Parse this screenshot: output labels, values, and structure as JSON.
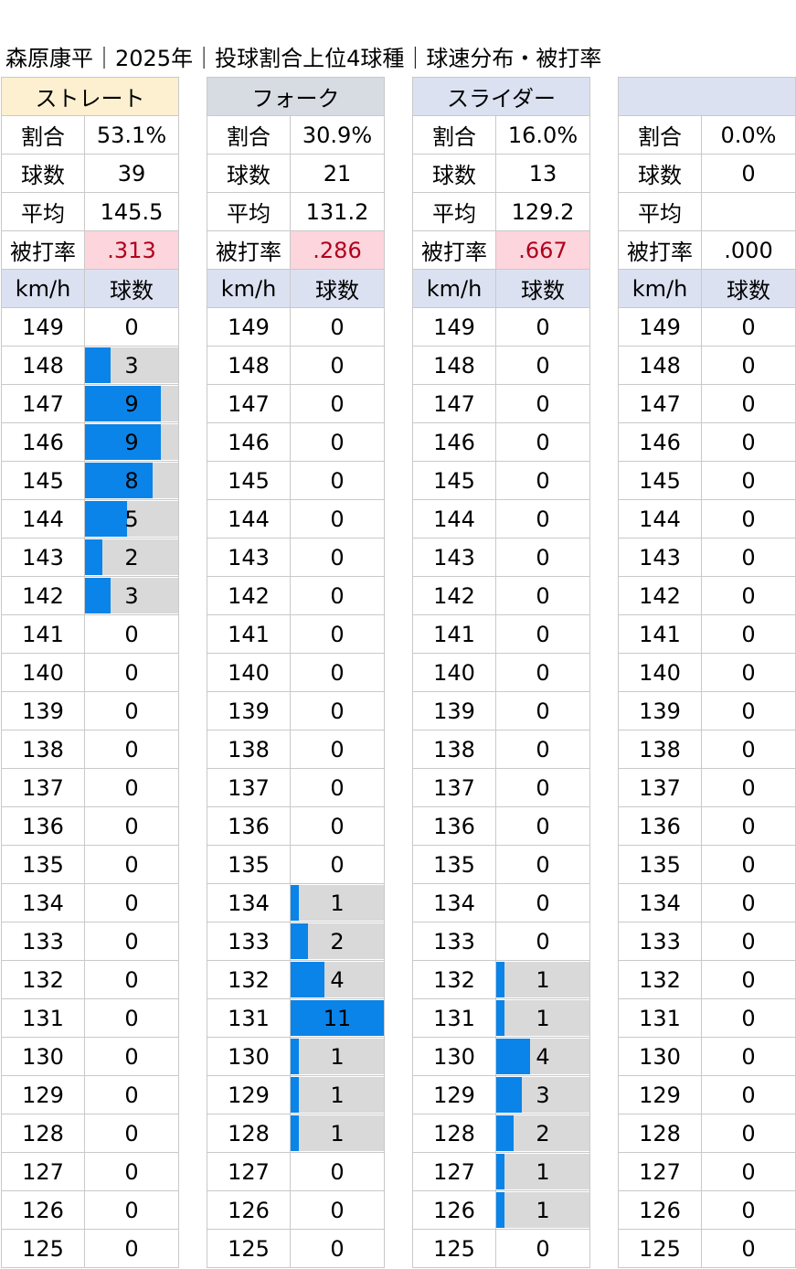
{
  "title": "森原康平｜2025年｜投球割合上位4球種｜球速分布・被打率",
  "labels": {
    "ratio": "割合",
    "count": "球数",
    "avg": "平均",
    "hit": "被打率",
    "speed": "km/h",
    "pitches": "球数"
  },
  "colors": {
    "bar": "#0a84e8",
    "track": "#d9d9d9",
    "hit_bg": "#fdd5dc",
    "hit_text": "#b0001e",
    "header_bg": "#dbe1f1"
  },
  "chart_data": {
    "type": "bar",
    "categories": [
      149,
      148,
      147,
      146,
      145,
      144,
      143,
      142,
      141,
      140,
      139,
      138,
      137,
      136,
      135,
      134,
      133,
      132,
      131,
      130,
      129,
      128,
      127,
      126,
      125
    ],
    "max_count": 11,
    "series": [
      {
        "name": "ストレート",
        "name_bg": "#fdf0d0",
        "ratio": "53.1%",
        "count": "39",
        "avg": "145.5",
        "hit": ".313",
        "hit_highlight": true,
        "values": [
          0,
          3,
          9,
          9,
          8,
          5,
          2,
          3,
          0,
          0,
          0,
          0,
          0,
          0,
          0,
          0,
          0,
          0,
          0,
          0,
          0,
          0,
          0,
          0,
          0
        ]
      },
      {
        "name": "フォーク",
        "name_bg": "#d7dce3",
        "ratio": "30.9%",
        "count": "21",
        "avg": "131.2",
        "hit": ".286",
        "hit_highlight": true,
        "values": [
          0,
          0,
          0,
          0,
          0,
          0,
          0,
          0,
          0,
          0,
          0,
          0,
          0,
          0,
          0,
          1,
          2,
          4,
          11,
          1,
          1,
          1,
          0,
          0,
          0
        ]
      },
      {
        "name": "スライダー",
        "name_bg": "#dbe1f1",
        "ratio": "16.0%",
        "count": "13",
        "avg": "129.2",
        "hit": ".667",
        "hit_highlight": true,
        "values": [
          0,
          0,
          0,
          0,
          0,
          0,
          0,
          0,
          0,
          0,
          0,
          0,
          0,
          0,
          0,
          0,
          0,
          1,
          1,
          4,
          3,
          2,
          1,
          1,
          0
        ]
      },
      {
        "name": "",
        "name_bg": "#dbe1f1",
        "ratio": "0.0%",
        "count": "0",
        "avg": "",
        "hit": ".000",
        "hit_highlight": false,
        "values": [
          0,
          0,
          0,
          0,
          0,
          0,
          0,
          0,
          0,
          0,
          0,
          0,
          0,
          0,
          0,
          0,
          0,
          0,
          0,
          0,
          0,
          0,
          0,
          0,
          0
        ]
      }
    ]
  }
}
